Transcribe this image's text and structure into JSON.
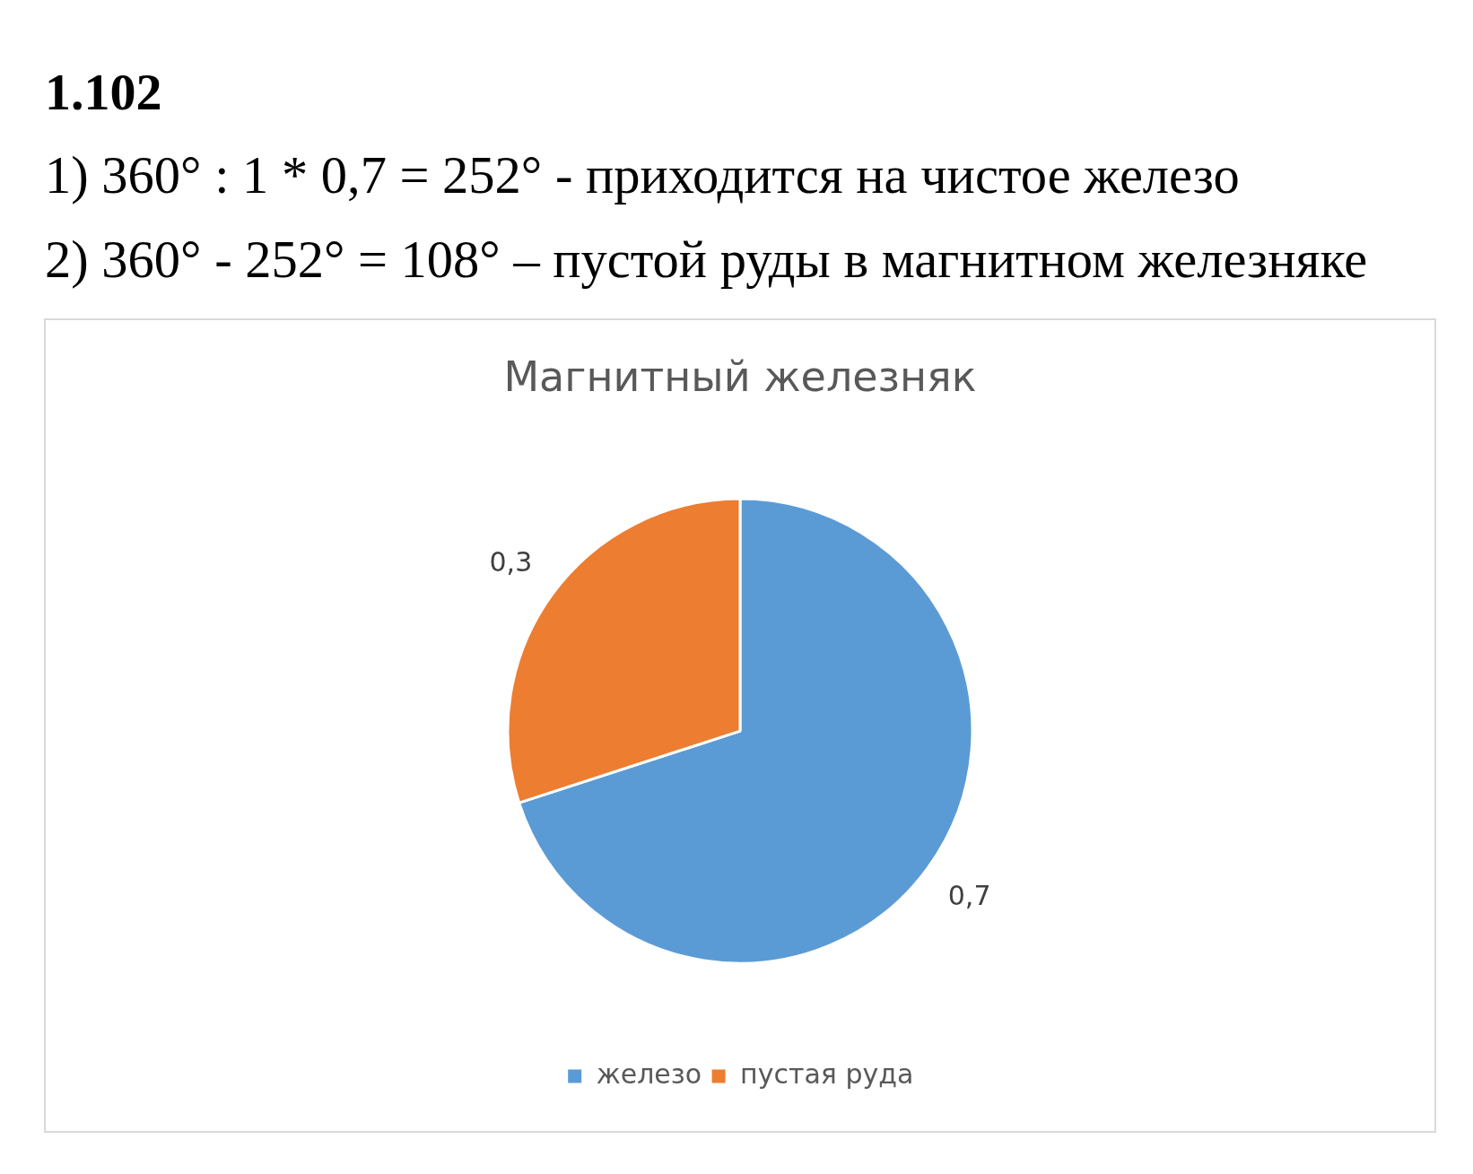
{
  "chart_data": {
    "type": "pie",
    "title": "Магнитный железняк",
    "annotations": [
      "1.102",
      "1) 360° : 1 * 0,7 = 252° - приходится на чистое железо",
      "2) 360° - 252° = 108° – пустой руды в магнитном железняке"
    ],
    "categories": [
      "железо",
      "пустая руда"
    ],
    "values": [
      0.7,
      0.3
    ],
    "colors": [
      "#5b9bd5",
      "#ed7d31"
    ],
    "value_labels": [
      "0,7",
      "0,3"
    ],
    "legend": "bottom"
  }
}
